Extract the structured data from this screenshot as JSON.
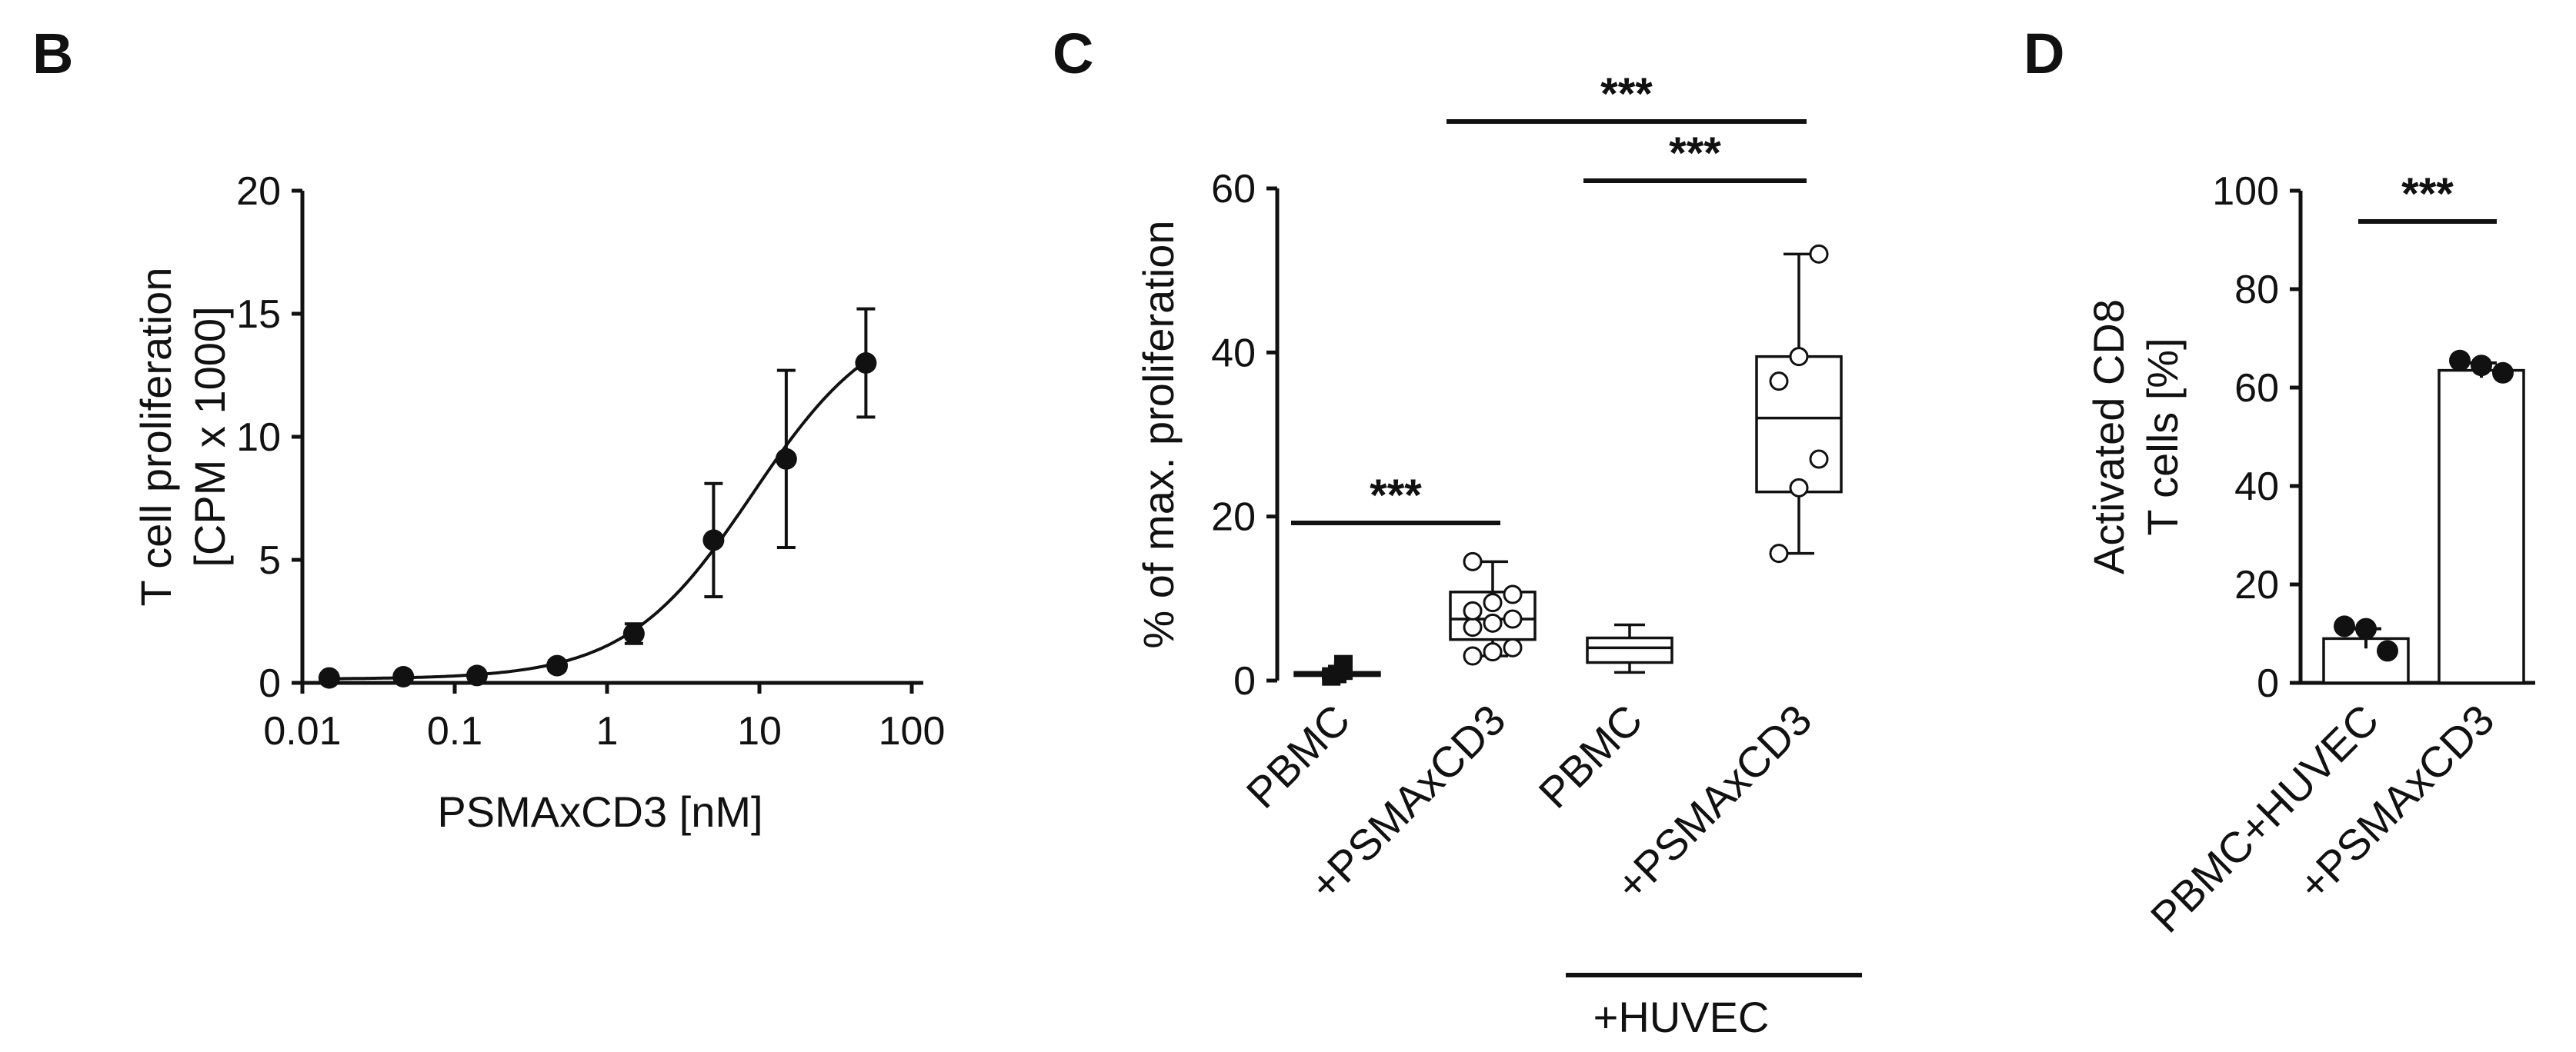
{
  "chart_data": [
    {
      "panel": "B",
      "type": "scatter",
      "xlabel": "PSMAxCD3 [nM]",
      "ylabel": [
        "T cell proliferation",
        "[CPM x 1000]"
      ],
      "xscale": "log",
      "xlim": [
        0.01,
        100
      ],
      "ylim": [
        0,
        20
      ],
      "xticks": [
        "0.01",
        "0.1",
        "1",
        "10",
        "100"
      ],
      "yticks": [
        "0",
        "5",
        "10",
        "15",
        "20"
      ],
      "fit": "sigmoidal dose-response curve",
      "x": [
        0.015,
        0.046,
        0.14,
        0.47,
        1.5,
        5,
        15,
        50
      ],
      "y": [
        0.2,
        0.25,
        0.3,
        0.7,
        2.0,
        5.8,
        9.1,
        13.0
      ],
      "error": [
        0.15,
        0.15,
        0.15,
        0.2,
        0.4,
        2.3,
        3.6,
        2.2
      ]
    },
    {
      "panel": "C",
      "type": "box",
      "ylabel": "% of max. proliferation",
      "ylim": [
        0,
        60
      ],
      "yticks": [
        "0",
        "20",
        "40",
        "60"
      ],
      "categories": [
        "PBMC",
        "+PSMAxCD3",
        "PBMC",
        "+PSMAxCD3"
      ],
      "group_label": "+HUVEC",
      "boxes": [
        {
          "min": 0.3,
          "q1": 0.6,
          "median": 0.8,
          "q3": 1.0,
          "max": 1.2,
          "points": [
            0.5,
            0.8,
            1.2,
            2.0
          ]
        },
        {
          "min": 3.0,
          "q1": 5.0,
          "median": 7.5,
          "q3": 10.8,
          "max": 14.5,
          "points": [
            3.0,
            3.5,
            4.0,
            6.5,
            7.0,
            7.5,
            8.5,
            9.5,
            10.5,
            14.5
          ]
        },
        {
          "min": 1.0,
          "q1": 2.2,
          "median": 4.0,
          "q3": 5.2,
          "max": 6.8,
          "points": []
        },
        {
          "min": 15.5,
          "q1": 23.0,
          "median": 32.0,
          "q3": 39.5,
          "max": 52.0,
          "points": [
            15.5,
            23.5,
            27.0,
            36.5,
            39.5,
            52.0
          ]
        }
      ],
      "significance": [
        {
          "from": 0,
          "to": 1,
          "label": "***"
        },
        {
          "from": 2,
          "to": 3,
          "label": "***"
        },
        {
          "from": 1,
          "to": 3,
          "label": "***"
        }
      ]
    },
    {
      "panel": "D",
      "type": "bar",
      "ylabel": [
        "Activated CD8",
        "T cells [%]"
      ],
      "ylim": [
        0,
        100
      ],
      "yticks": [
        "0",
        "20",
        "40",
        "60",
        "80",
        "100"
      ],
      "categories": [
        "PBMC+HUVEC",
        "+PSMAxCD3"
      ],
      "values": [
        9,
        63.5
      ],
      "error": [
        2,
        1.5
      ],
      "points": [
        [
          11.5,
          11.0,
          6.5
        ],
        [
          65.5,
          64.5,
          63.0
        ]
      ],
      "significance": [
        {
          "from": 0,
          "to": 1,
          "label": "***"
        }
      ]
    }
  ]
}
